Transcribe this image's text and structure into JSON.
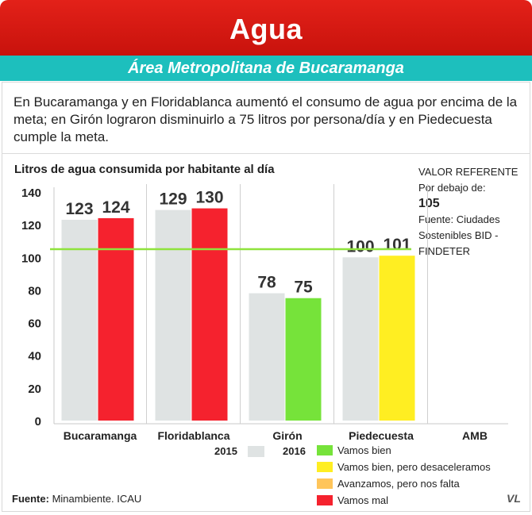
{
  "header": {
    "title": "Agua",
    "subtitle": "Área Metropolitana de Bucaramanga"
  },
  "intro_text": "En Bucaramanga y en Floridablanca aumentó el consumo de agua por encima de la meta; en Girón lograron disminuirlo a 75 litros por persona/día y en Piedecuesta cumple la meta.",
  "reference": {
    "line1": "VALOR REFERENTE",
    "line2": "Por debajo de:",
    "value": "105",
    "line3": "Fuente: Ciudades",
    "line4": "Sostenibles BID -",
    "line5": "FINDETER"
  },
  "colors": {
    "header_red": "#d91a12",
    "subheader_teal": "#1dbfbd",
    "bar_2015": "#dfe3e3",
    "vamos_bien": "#76e33a",
    "vamos_bien_desaceleramos": "#ffee22",
    "avanzamos": "#ffc55a",
    "vamos_mal": "#f5222e",
    "reference_line": "#8fe33d"
  },
  "chart_data": {
    "type": "bar",
    "title": "Litros de agua consumida por habitante al día",
    "categories": [
      "Bucaramanga",
      "Floridablanca",
      "Girón",
      "Piedecuesta",
      "AMB"
    ],
    "series": [
      {
        "name": "2015",
        "values": [
          123,
          129,
          78,
          100,
          null
        ]
      },
      {
        "name": "2016",
        "values": [
          124,
          130,
          75,
          101,
          null
        ]
      }
    ],
    "status_2016": [
      "Vamos mal",
      "Vamos mal",
      "Vamos bien",
      "Vamos bien, pero desaceleramos",
      null
    ],
    "reference_value": 105,
    "y_ticks": [
      "0",
      "20",
      "40",
      "60",
      "80",
      "100",
      "120",
      "140"
    ],
    "ylim": [
      0,
      140
    ],
    "grid": false,
    "legend_position": "bottom-right"
  },
  "legend": {
    "years": [
      "2015",
      "2016"
    ],
    "status_items": [
      "Vamos bien",
      "Vamos bien, pero desaceleramos",
      "Avanzamos, pero nos falta",
      "Vamos mal"
    ]
  },
  "footer": {
    "source_label": "Fuente:",
    "source_text": " Minambiente. ICAU",
    "logo": "VL"
  }
}
